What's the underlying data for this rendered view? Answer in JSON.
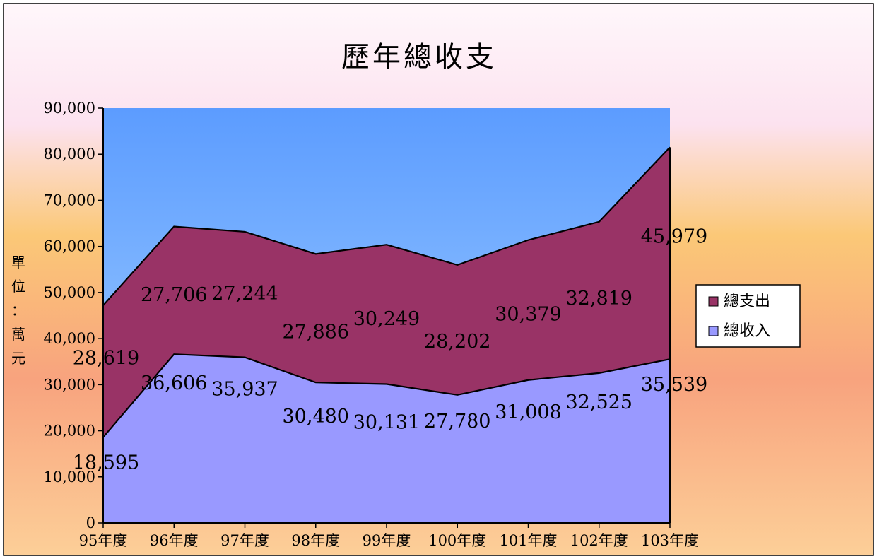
{
  "chart_data": {
    "type": "area",
    "stacked": true,
    "title": "歷年總收支",
    "ylabel": "單位：萬元",
    "xlabel": "",
    "categories": [
      "95年度",
      "96年度",
      "97年度",
      "98年度",
      "99年度",
      "100年度",
      "101年度",
      "102年度",
      "103年度"
    ],
    "ylim": [
      0,
      90000
    ],
    "yticks": [
      0,
      10000,
      20000,
      30000,
      40000,
      50000,
      60000,
      70000,
      80000,
      90000
    ],
    "ytick_labels": [
      "0",
      "10,000",
      "20,000",
      "30,000",
      "40,000",
      "50,000",
      "60,000",
      "70,000",
      "80,000",
      "90,000"
    ],
    "series": [
      {
        "name": "總收入",
        "values": [
          18595,
          36606,
          35937,
          30480,
          30131,
          27780,
          31008,
          32525,
          35539
        ],
        "labels": [
          "18,595",
          "36,606",
          "35,937",
          "30,480",
          "30,131",
          "27,780",
          "31,008",
          "32,525",
          "35,539"
        ],
        "color": "#9999ff"
      },
      {
        "name": "總支出",
        "values": [
          28619,
          27706,
          27244,
          27886,
          30249,
          28202,
          30379,
          32819,
          45979
        ],
        "labels": [
          "28,619",
          "27,706",
          "27,244",
          "27,886",
          "30,249",
          "28,202",
          "30,379",
          "32,819",
          "45,979"
        ],
        "color": "#993366"
      }
    ],
    "legend": {
      "placement": "right",
      "order": [
        "總支出",
        "總收入"
      ]
    },
    "grid": false,
    "background_colors": [
      "#fce4f0",
      "#fbc46e",
      "#f9a27a"
    ],
    "plot_background_colors": [
      "#5599ff",
      "#99ccff"
    ]
  }
}
